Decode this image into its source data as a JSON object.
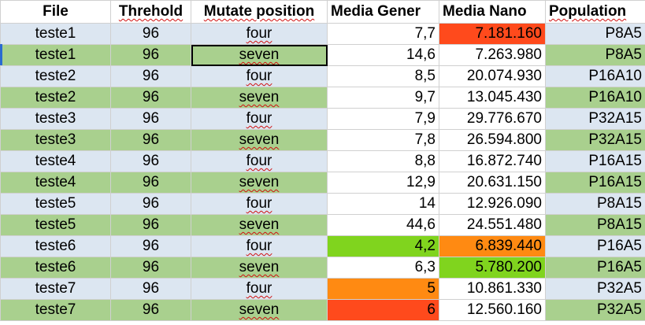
{
  "columns": [
    {
      "label": "File",
      "spell": false,
      "align": "c"
    },
    {
      "label": "Threhold",
      "spell": true,
      "align": "c"
    },
    {
      "label": "Mutate position",
      "spell": true,
      "align": "c"
    },
    {
      "label": "Media Gener",
      "spell": false,
      "align": "l"
    },
    {
      "label": "Media Nano",
      "spell": false,
      "align": "l"
    },
    {
      "label": "Population",
      "spell": true,
      "align": "l"
    }
  ],
  "colors": {
    "band_blue": "#dce6f1",
    "band_green": "#a9d08e",
    "red": "#ff4a1c",
    "orange": "#ff8a12",
    "green": "#80d41e",
    "light_green": "#a9d08e"
  },
  "rows": [
    {
      "band": "blue",
      "file": "teste1",
      "threshold": "96",
      "position": "four",
      "gener": "7,7",
      "gener_fill": null,
      "nano": "7.181.160",
      "nano_fill": "#ff4a1c",
      "population": "P8A5"
    },
    {
      "band": "green",
      "file": "teste1",
      "threshold": "96",
      "position": "seven",
      "gener": "14,6",
      "gener_fill": null,
      "nano": "7.263.980",
      "nano_fill": null,
      "population": "P8A5",
      "selected": true
    },
    {
      "band": "blue",
      "file": "teste2",
      "threshold": "96",
      "position": "four",
      "gener": "8,5",
      "gener_fill": null,
      "nano": "20.074.930",
      "nano_fill": null,
      "population": "P16A10"
    },
    {
      "band": "green",
      "file": "teste2",
      "threshold": "96",
      "position": "seven",
      "gener": "9,7",
      "gener_fill": null,
      "nano": "13.045.430",
      "nano_fill": null,
      "population": "P16A10"
    },
    {
      "band": "blue",
      "file": "teste3",
      "threshold": "96",
      "position": "four",
      "gener": "7,9",
      "gener_fill": null,
      "nano": "29.776.670",
      "nano_fill": null,
      "population": "P32A15"
    },
    {
      "band": "green",
      "file": "teste3",
      "threshold": "96",
      "position": "seven",
      "gener": "7,8",
      "gener_fill": null,
      "nano": "26.594.800",
      "nano_fill": null,
      "population": "P32A15"
    },
    {
      "band": "blue",
      "file": "teste4",
      "threshold": "96",
      "position": "four",
      "gener": "8,8",
      "gener_fill": null,
      "nano": "16.872.740",
      "nano_fill": null,
      "population": "P16A15"
    },
    {
      "band": "green",
      "file": "teste4",
      "threshold": "96",
      "position": "seven",
      "gener": "12,9",
      "gener_fill": null,
      "nano": "20.631.150",
      "nano_fill": null,
      "population": "P16A15"
    },
    {
      "band": "blue",
      "file": "teste5",
      "threshold": "96",
      "position": "four",
      "gener": "14",
      "gener_fill": null,
      "nano": "12.926.090",
      "nano_fill": null,
      "population": "P8A15"
    },
    {
      "band": "green",
      "file": "teste5",
      "threshold": "96",
      "position": "seven",
      "gener": "44,6",
      "gener_fill": null,
      "nano": "24.551.480",
      "nano_fill": null,
      "population": "P8A15"
    },
    {
      "band": "blue",
      "file": "teste6",
      "threshold": "96",
      "position": "four",
      "gener": "4,2",
      "gener_fill": "#80d41e",
      "nano": "6.839.440",
      "nano_fill": "#ff8a12",
      "population": "P16A5"
    },
    {
      "band": "green",
      "file": "teste6",
      "threshold": "96",
      "position": "seven",
      "gener": "6,3",
      "gener_fill": null,
      "nano": "5.780.200",
      "nano_fill": "#80d41e",
      "population": "P16A5"
    },
    {
      "band": "blue",
      "file": "teste7",
      "threshold": "96",
      "position": "four",
      "gener": "5",
      "gener_fill": "#ff8a12",
      "nano": "10.861.330",
      "nano_fill": null,
      "population": "P32A5"
    },
    {
      "band": "green",
      "file": "teste7",
      "threshold": "96",
      "position": "seven",
      "gener": "6",
      "gener_fill": "#ff4a1c",
      "nano": "12.560.160",
      "nano_fill": null,
      "population": "P32A5"
    }
  ]
}
